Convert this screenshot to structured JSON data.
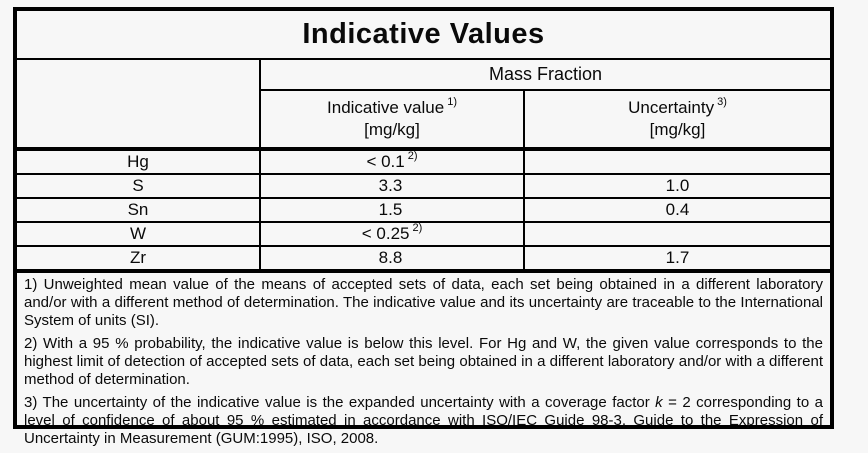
{
  "document": {
    "title": "Indicative Values",
    "group_header": "Mass Fraction",
    "columns": [
      {
        "label": "Indicative value",
        "footnote_ref": "1)",
        "unit": "[mg/kg]"
      },
      {
        "label": "Uncertainty",
        "footnote_ref": "3)",
        "unit": "[mg/kg]"
      }
    ],
    "rows": [
      {
        "element": "Hg",
        "value": "< 0.1",
        "value_ref": "2)",
        "uncertainty": ""
      },
      {
        "element": "S",
        "value": "3.3",
        "value_ref": "",
        "uncertainty": "1.0"
      },
      {
        "element": "Sn",
        "value": "1.5",
        "value_ref": "",
        "uncertainty": "0.4"
      },
      {
        "element": "W",
        "value": "< 0.25",
        "value_ref": "2)",
        "uncertainty": ""
      },
      {
        "element": "Zr",
        "value": "8.8",
        "value_ref": "",
        "uncertainty": "1.7"
      }
    ],
    "footnotes": {
      "fn1": "1) Unweighted mean value of the means of accepted sets of data, each set being obtained in a different laboratory and/or with a different method of determination. The indicative value and its uncertainty are traceable to the International System of units (SI).",
      "fn2": "2) With a 95 % probability, the indicative value is below this level. For Hg and W, the given value corresponds to the highest limit of detection of accepted sets of data, each set being obtained in a different laboratory and/or with a different method of determination.",
      "fn3_before": "3) The uncertainty of the indicative value is the expanded uncertainty with a coverage factor ",
      "fn3_symbol": "k",
      "fn3_after": " = 2 corresponding to a level of confidence of about 95 % estimated in accordance with ISO/IEC Guide 98-3, Guide to the Expression of Uncertainty in Measurement (GUM:1995), ISO, 2008."
    },
    "colors": {
      "border": "#000000",
      "background": "#f7f7f7",
      "text": "#0a0a0a"
    }
  }
}
